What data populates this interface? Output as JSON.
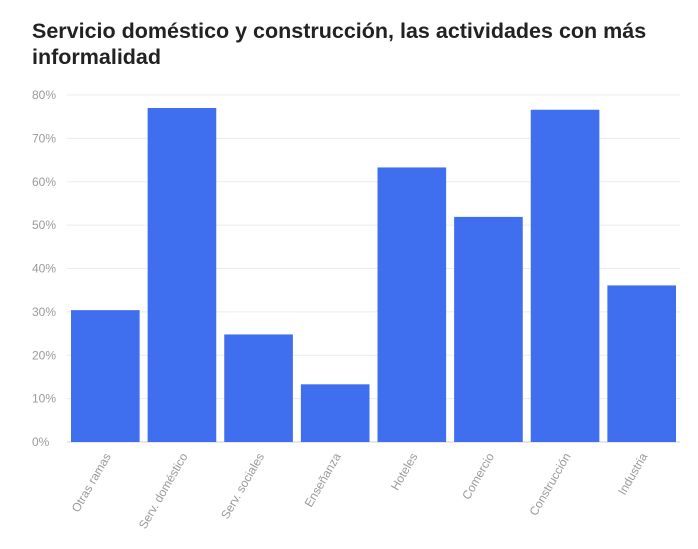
{
  "chart_data": {
    "type": "bar",
    "title": "Servicio doméstico y construcción, las actividades con más informalidad",
    "xlabel": "",
    "ylabel": "",
    "categories": [
      "Otras ramas",
      "Serv. doméstico",
      "Serv. sociales",
      "Enseñanza",
      "Hoteles",
      "Comercio",
      "Construcción",
      "Industria"
    ],
    "values": [
      30.4,
      77.0,
      24.8,
      13.3,
      63.3,
      51.9,
      76.6,
      36.1
    ],
    "ylim": [
      0,
      80
    ],
    "yticks": [
      "0%",
      "10%",
      "20%",
      "30%",
      "40%",
      "50%",
      "60%",
      "70%",
      "80%"
    ],
    "grid": true,
    "bar_color": "#3f6fee",
    "legend": "none"
  }
}
